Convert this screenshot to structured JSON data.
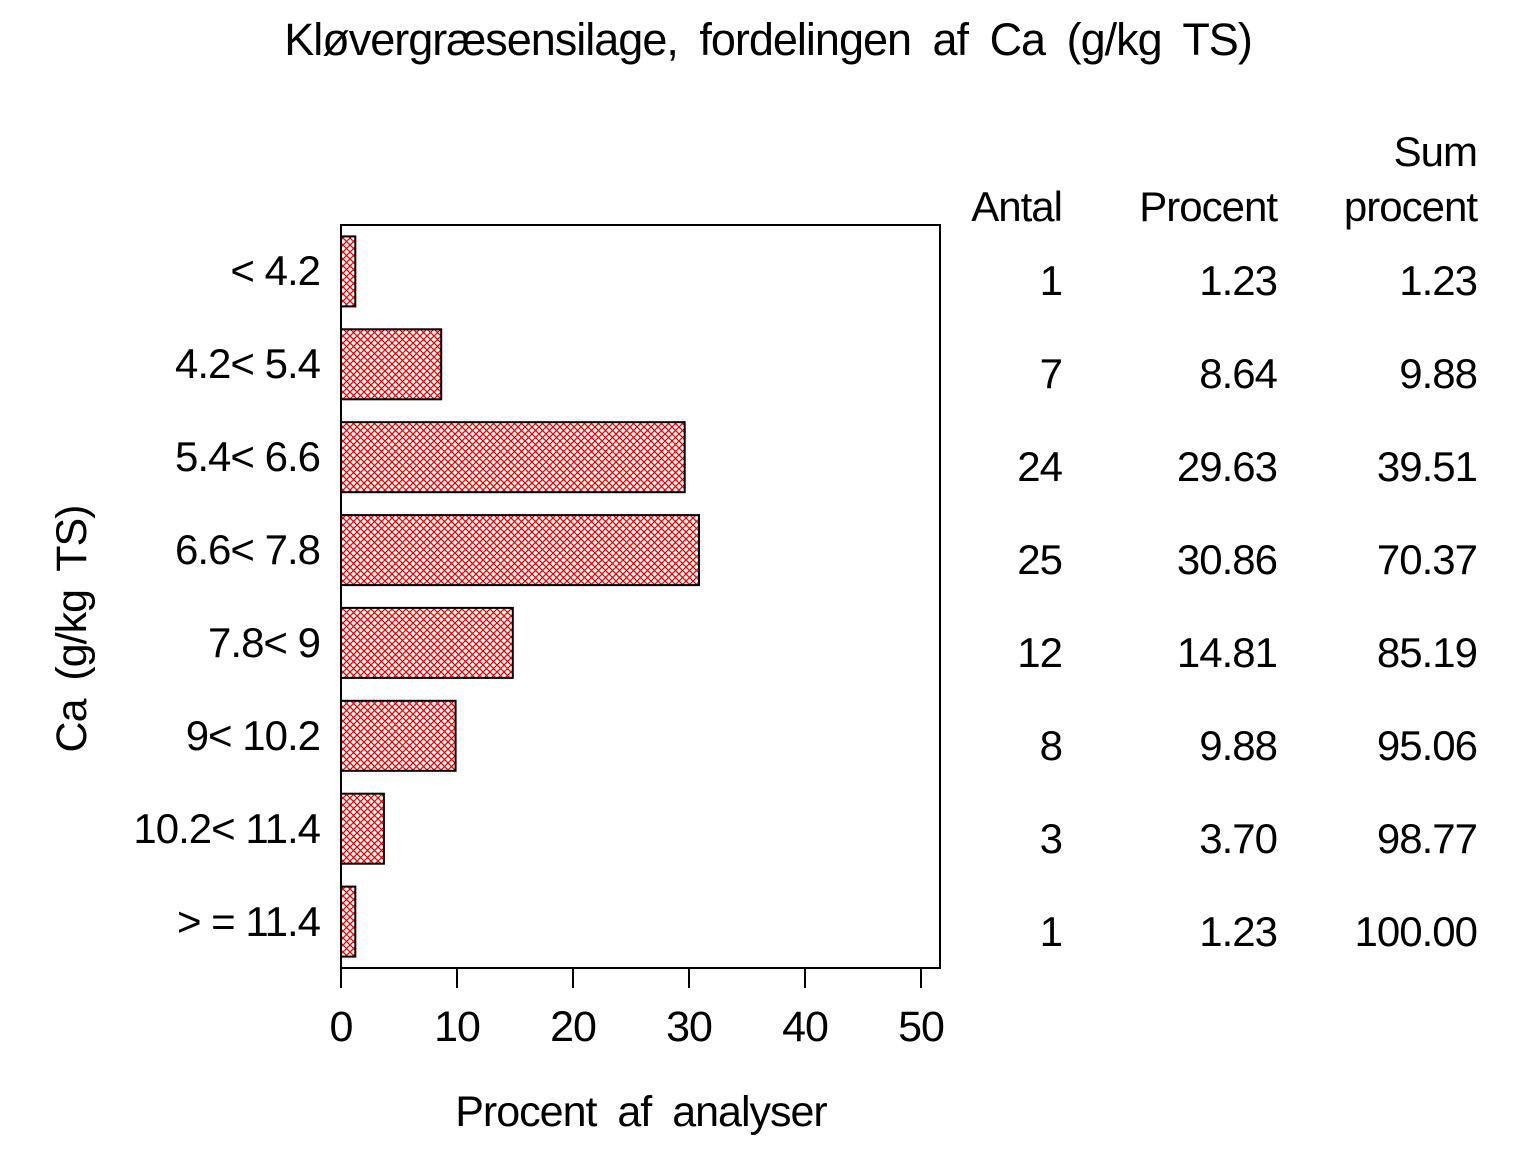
{
  "title": "Kløvergræsensilage, fordelingen af Ca (g/kg TS)",
  "chart_data": {
    "type": "bar",
    "orientation": "horizontal",
    "title": "Kløvergræsensilage, fordelingen af Ca (g/kg TS)",
    "xlabel": "Procent af analyser",
    "ylabel": "Ca (g/kg TS)",
    "categories": [
      "< 4.2",
      "4.2< 5.4",
      "5.4< 6.6",
      "6.6< 7.8",
      "7.8< 9",
      "9< 10.2",
      "10.2< 11.4",
      "> = 11.4"
    ],
    "values": [
      1.23,
      8.64,
      29.63,
      30.86,
      14.81,
      9.88,
      3.7,
      1.23
    ],
    "xticks": [
      0,
      10,
      20,
      30,
      40,
      50
    ],
    "xlim": [
      0,
      51.6
    ],
    "grid": false,
    "legend": "none",
    "bar_style": {
      "pattern": "diagonal-crosshatch",
      "color": "#ee0000",
      "border_color": "#000000",
      "background": "#ffffff"
    },
    "table": {
      "col_antal_header": "Antal",
      "col_procent_header": "Procent",
      "col_sum_header_line1": "Sum",
      "col_sum_header_line2": "procent",
      "rows": [
        {
          "antal": "1",
          "procent": "1.23",
          "sum": "1.23"
        },
        {
          "antal": "7",
          "procent": "8.64",
          "sum": "9.88"
        },
        {
          "antal": "24",
          "procent": "29.63",
          "sum": "39.51"
        },
        {
          "antal": "25",
          "procent": "30.86",
          "sum": "70.37"
        },
        {
          "antal": "12",
          "procent": "14.81",
          "sum": "85.19"
        },
        {
          "antal": "8",
          "procent": "9.88",
          "sum": "95.06"
        },
        {
          "antal": "3",
          "procent": "3.70",
          "sum": "98.77"
        },
        {
          "antal": "1",
          "procent": "1.23",
          "sum": "100.00"
        }
      ]
    }
  }
}
